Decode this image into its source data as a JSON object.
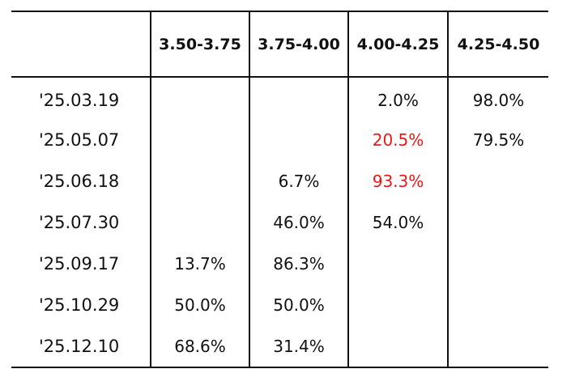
{
  "table": {
    "columns": [
      "",
      "3.50-3.75",
      "3.75-4.00",
      "4.00-4.25",
      "4.25-4.50"
    ],
    "rows": [
      {
        "date": "'25.03.19",
        "cells": [
          "",
          "",
          "2.0%",
          "98.0%"
        ]
      },
      {
        "date": "'25.05.07",
        "cells": [
          "",
          "",
          "20.5%",
          "79.5%"
        ]
      },
      {
        "date": "'25.06.18",
        "cells": [
          "",
          "6.7%",
          "93.3%",
          ""
        ]
      },
      {
        "date": "'25.07.30",
        "cells": [
          "",
          "46.0%",
          "54.0%",
          ""
        ]
      },
      {
        "date": "'25.09.17",
        "cells": [
          "13.7%",
          "86.3%",
          "",
          ""
        ]
      },
      {
        "date": "'25.10.29",
        "cells": [
          "50.0%",
          "50.0%",
          "",
          ""
        ]
      },
      {
        "date": "'25.12.10",
        "cells": [
          "68.6%",
          "31.4%",
          "",
          ""
        ]
      }
    ]
  },
  "colors": {
    "highlight": "#e31b1b",
    "text": "#111111",
    "rule": "#111111"
  }
}
